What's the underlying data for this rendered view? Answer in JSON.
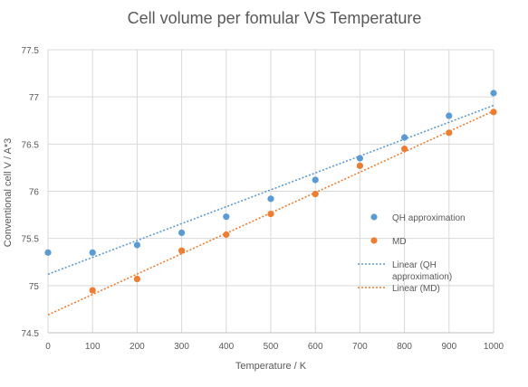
{
  "chart_data": {
    "type": "scatter",
    "title": "Cell volume per fomular VS Temperature",
    "xlabel": "Temperature / K",
    "ylabel": "Conventional cell V / A*3",
    "xlim": [
      0,
      1000
    ],
    "ylim": [
      74.5,
      77.5
    ],
    "x_ticks": [
      "0",
      "100",
      "200",
      "300",
      "400",
      "500",
      "600",
      "700",
      "800",
      "900",
      "1000"
    ],
    "y_ticks": [
      "74.5",
      "75",
      "75.5",
      "76",
      "76.5",
      "77",
      "77.5"
    ],
    "grid": true,
    "legend_position": "right",
    "series": [
      {
        "name": "QH approximation",
        "color": "#5b9bd5",
        "x": [
          0,
          100,
          200,
          300,
          400,
          500,
          600,
          700,
          800,
          900,
          1000
        ],
        "y": [
          75.35,
          75.35,
          75.43,
          75.56,
          75.73,
          75.92,
          76.12,
          76.35,
          76.57,
          76.8,
          77.04
        ]
      },
      {
        "name": "MD",
        "color": "#ed7d31",
        "x": [
          100,
          200,
          300,
          400,
          500,
          600,
          700,
          800,
          900,
          1000
        ],
        "y": [
          74.95,
          75.07,
          75.37,
          75.54,
          75.76,
          75.97,
          76.27,
          76.45,
          76.62,
          76.84
        ]
      }
    ],
    "trendlines": [
      {
        "name": "Linear (QH\napproximation)",
        "color": "#5b9bd5",
        "type": "linear",
        "x": [
          0,
          1000
        ],
        "y": [
          75.12,
          76.91
        ]
      },
      {
        "name": "Linear (MD)",
        "color": "#ed7d31",
        "type": "linear",
        "x": [
          0,
          1000
        ],
        "y": [
          74.69,
          76.85
        ]
      }
    ]
  }
}
